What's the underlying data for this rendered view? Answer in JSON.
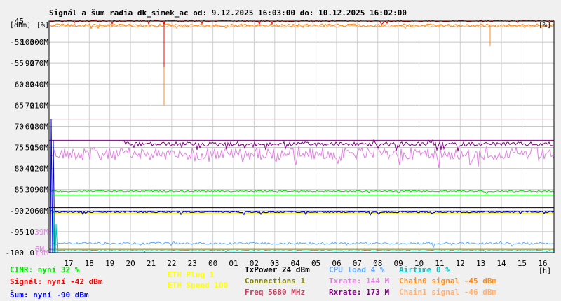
{
  "chart_data": {
    "type": "line",
    "title": "Signál a šum radia dk_simek_ac od: 9.12.2025 16:03:00 do: 10.12.2025 16:02:00",
    "x_ticks": [
      "17",
      "18",
      "19",
      "20",
      "21",
      "22",
      "23",
      "00",
      "01",
      "02",
      "03",
      "04",
      "05",
      "06",
      "07",
      "08",
      "09",
      "10",
      "11",
      "12",
      "13",
      "14",
      "15",
      "16"
    ],
    "x_unit": "[h]",
    "y_units": [
      "[dBm]",
      "[%]"
    ],
    "y_ticks": [
      {
        "dbm": "-45",
        "pct": "",
        "rate": ""
      },
      {
        "dbm": "-50",
        "pct": "100",
        "rate": "300M"
      },
      {
        "dbm": "-55",
        "pct": "90",
        "rate": "270M"
      },
      {
        "dbm": "-60",
        "pct": "80",
        "rate": "240M"
      },
      {
        "dbm": "-65",
        "pct": "70",
        "rate": "210M"
      },
      {
        "dbm": "-70",
        "pct": "60",
        "rate": "180M"
      },
      {
        "dbm": "-75",
        "pct": "50",
        "rate": "150M"
      },
      {
        "dbm": "-80",
        "pct": "40",
        "rate": "120M"
      },
      {
        "dbm": "-85",
        "pct": "30",
        "rate": "90M"
      },
      {
        "dbm": "-90",
        "pct": "20",
        "rate": "60M"
      },
      {
        "dbm": "-95",
        "pct": "10",
        "rate": "39M"
      },
      {
        "dbm": "-100",
        "pct": "0",
        "rate": "13M"
      }
    ],
    "extra_rate_tick": "6M",
    "ylim_dbm": [
      -100,
      -45
    ],
    "series": [
      {
        "name": "Signál",
        "color": "#ff0000",
        "approx": -45
      },
      {
        "name": "Chain0 signal",
        "color": "#ff8c1a",
        "approx": -47
      },
      {
        "name": "Rxrate",
        "color": "#800080",
        "approx": 173
      },
      {
        "name": "Txrate",
        "color": "#e080e0",
        "approx": 144
      },
      {
        "name": "CINR",
        "color": "#00e000",
        "approx": 32
      },
      {
        "name": "Šum",
        "color": "#0000d0",
        "approx": -90
      },
      {
        "name": "ETH Speed",
        "color": "#ffff00",
        "approx": 100
      },
      {
        "name": "CPU load",
        "color": "#60a8ff",
        "approx": 4
      },
      {
        "name": "Freq",
        "color": "#c04060",
        "approx": 5680
      }
    ]
  },
  "legend": {
    "cinr": "CINR: nyní 32 %",
    "signal": "Signál: nyní -42 dBm",
    "noise": "Šum: nyní -90 dBm",
    "eth_plug": "ETH Plug 1",
    "eth_speed": "ETH Speed 100",
    "txpower": "TxPower 24 dBm",
    "connections": "Connections 1",
    "freq": "Freq 5680 MHz",
    "cpu": "CPU load 4 %",
    "txrate": "Txrate: 144 M",
    "rxrate": "Rxrate: 173 M",
    "airtime": "Airtime 0 %",
    "chain0": "Chain0 signal -45 dBm",
    "chain1": "Chain1 signal -46 dBm"
  },
  "colors": {
    "cinr": "#00e000",
    "signal": "#ff0000",
    "noise": "#0000ff",
    "eth_plug": "#ffff00",
    "eth_speed": "#ffff00",
    "txpower": "#000000",
    "connections": "#808000",
    "freq": "#c04060",
    "cpu": "#60a8ff",
    "txrate": "#e080e0",
    "rxrate": "#800080",
    "airtime": "#00c0c0",
    "chain0": "#ff8c1a",
    "chain1": "#ffb070"
  }
}
